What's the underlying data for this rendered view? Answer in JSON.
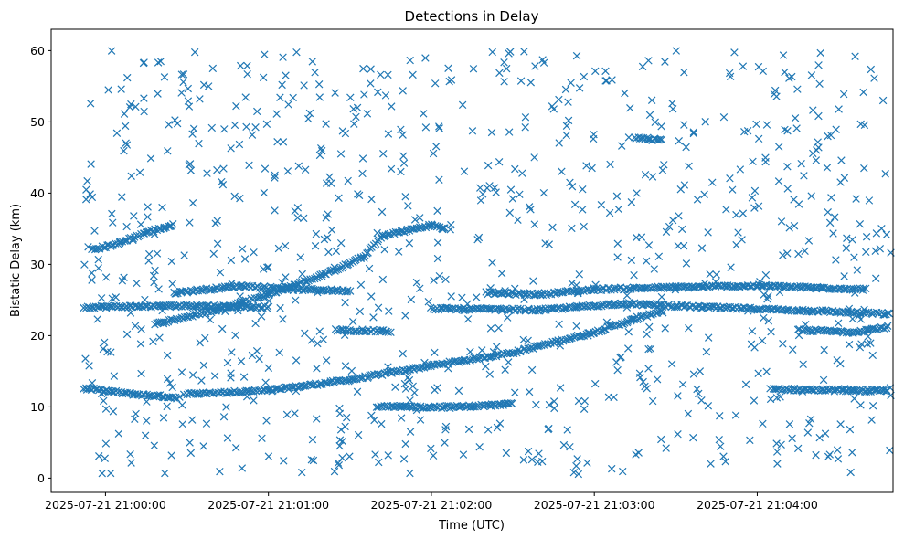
{
  "chart_data": {
    "type": "scatter",
    "title": "Detections in Delay",
    "xlabel": "Time (UTC)",
    "ylabel": "Bistatic Delay (km)",
    "x_axis_type": "datetime",
    "xlim": [
      "2025-07-21 20:59:40",
      "2025-07-21 21:04:50"
    ],
    "ylim": [
      -2,
      63
    ],
    "x_ticks": [
      "2025-07-21 21:00:00",
      "2025-07-21 21:01:00",
      "2025-07-21 21:02:00",
      "2025-07-21 21:03:00",
      "2025-07-21 21:04:00"
    ],
    "y_ticks": [
      0,
      10,
      20,
      30,
      40,
      50,
      60
    ],
    "marker": "x",
    "color": "#1f77b4",
    "grid": false,
    "legend": "none",
    "track_segments": [
      {
        "description": "long rising track",
        "from": [
          "2025-07-21 21:00:30",
          11.8
        ],
        "to": [
          "2025-07-21 21:03:25",
          23.5
        ],
        "points": [
          [
            "2025-07-21 21:00:30",
            11.8
          ],
          [
            "2025-07-21 21:01:00",
            12.3
          ],
          [
            "2025-07-21 21:01:30",
            13.8
          ],
          [
            "2025-07-21 21:02:00",
            15.8
          ],
          [
            "2025-07-21 21:02:30",
            17.6
          ],
          [
            "2025-07-21 21:03:00",
            20.5
          ],
          [
            "2025-07-21 21:03:25",
            23.5
          ]
        ]
      },
      {
        "description": "early low track",
        "points": [
          [
            "2025-07-21 20:59:52",
            12.6
          ],
          [
            "2025-07-21 21:00:10",
            11.8
          ],
          [
            "2025-07-21 21:00:27",
            11.3
          ]
        ]
      },
      {
        "description": "rising track to 35 km",
        "points": [
          [
            "2025-07-21 21:00:18",
            21.6
          ],
          [
            "2025-07-21 21:00:40",
            23.5
          ],
          [
            "2025-07-21 21:01:00",
            25.8
          ],
          [
            "2025-07-21 21:01:20",
            28.5
          ],
          [
            "2025-07-21 21:01:35",
            31.0
          ],
          [
            "2025-07-21 21:01:42",
            34.0
          ],
          [
            "2025-07-21 21:02:00",
            35.5
          ],
          [
            "2025-07-21 21:02:05",
            35.0
          ]
        ]
      },
      {
        "description": "upper early curve",
        "points": [
          [
            "2025-07-21 20:59:55",
            32.0
          ],
          [
            "2025-07-21 21:00:05",
            33.0
          ],
          [
            "2025-07-21 21:00:15",
            34.5
          ],
          [
            "2025-07-21 21:00:25",
            35.5
          ]
        ]
      },
      {
        "description": "mid track 26 km",
        "points": [
          [
            "2025-07-21 21:00:25",
            26.0
          ],
          [
            "2025-07-21 21:00:50",
            27.0
          ],
          [
            "2025-07-21 21:01:10",
            26.5
          ],
          [
            "2025-07-21 21:01:30",
            26.3
          ]
        ]
      },
      {
        "description": "24 km band",
        "points": [
          [
            "2025-07-21 20:59:52",
            24.0
          ],
          [
            "2025-07-21 21:00:30",
            24.2
          ],
          [
            "2025-07-21 21:01:00",
            24.0
          ]
        ]
      },
      {
        "description": "late 26 km track",
        "points": [
          [
            "2025-07-21 21:02:20",
            26.0
          ],
          [
            "2025-07-21 21:02:40",
            25.8
          ],
          [
            "2025-07-21 21:03:00",
            26.5
          ],
          [
            "2025-07-21 21:03:30",
            26.8
          ],
          [
            "2025-07-21 21:04:00",
            27.0
          ],
          [
            "2025-07-21 21:04:40",
            26.5
          ]
        ]
      },
      {
        "description": "late 24 km band",
        "points": [
          [
            "2025-07-21 21:02:00",
            23.8
          ],
          [
            "2025-07-21 21:02:40",
            23.6
          ],
          [
            "2025-07-21 21:03:10",
            24.5
          ],
          [
            "2025-07-21 21:03:40",
            24.0
          ],
          [
            "2025-07-21 21:04:20",
            23.5
          ],
          [
            "2025-07-21 21:04:50",
            23.0
          ]
        ]
      },
      {
        "description": "upper late 47 km segment",
        "points": [
          [
            "2025-07-21 21:03:15",
            47.8
          ],
          [
            "2025-07-21 21:03:25",
            47.4
          ]
        ]
      },
      {
        "description": "late 12 km track",
        "points": [
          [
            "2025-07-21 21:04:05",
            12.5
          ],
          [
            "2025-07-21 21:04:35",
            12.3
          ],
          [
            "2025-07-21 21:04:48",
            12.2
          ]
        ]
      },
      {
        "description": "late 21 km track",
        "points": [
          [
            "2025-07-21 21:04:15",
            20.8
          ],
          [
            "2025-07-21 21:04:35",
            20.5
          ],
          [
            "2025-07-21 21:04:48",
            21.2
          ]
        ]
      },
      {
        "description": "10 km segment",
        "points": [
          [
            "2025-07-21 21:01:40",
            10.0
          ],
          [
            "2025-07-21 21:02:10",
            10.0
          ],
          [
            "2025-07-21 21:02:30",
            10.4
          ]
        ]
      },
      {
        "description": "20.5 km segment",
        "points": [
          [
            "2025-07-21 21:01:25",
            20.8
          ],
          [
            "2025-07-21 21:01:45",
            20.6
          ]
        ]
      }
    ],
    "clutter": {
      "x_range": [
        "2025-07-21 20:59:52",
        "2025-07-21 21:04:50"
      ],
      "y_range": [
        0.5,
        60
      ]
    }
  }
}
